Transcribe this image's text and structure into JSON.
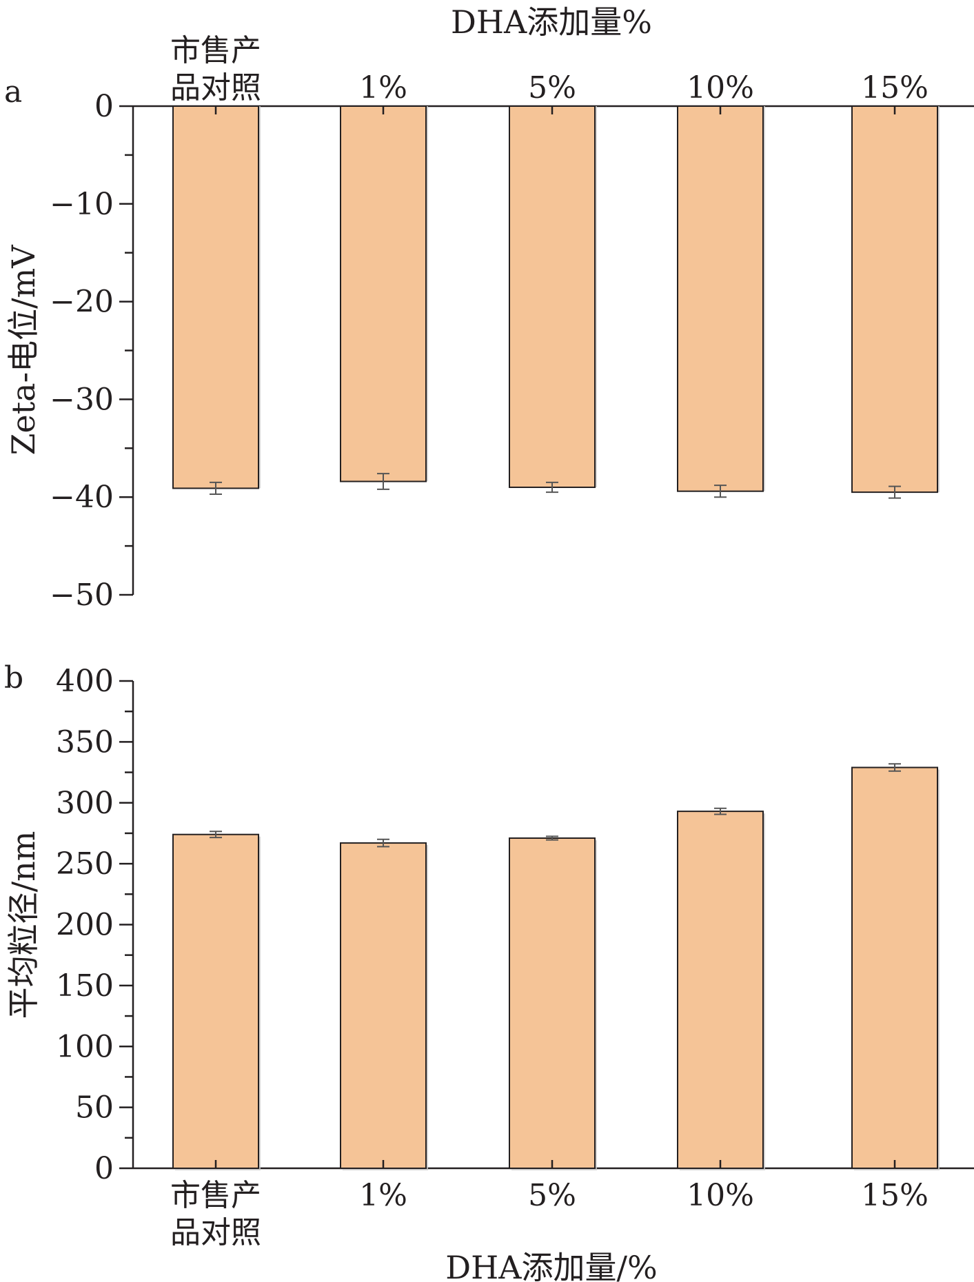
{
  "chart_data": [
    {
      "type": "bar",
      "panel_label": "a",
      "title": "",
      "xlabel": "DHA添加量%",
      "ylabel": "Zeta-电位/mV",
      "x_axis_position": "top",
      "categories": [
        [
          "市售产",
          "品对照"
        ],
        [
          "1%"
        ],
        [
          "5%"
        ],
        [
          "10%"
        ],
        [
          "15%"
        ]
      ],
      "values": [
        -39.1,
        -38.4,
        -39.0,
        -39.4,
        -39.5
      ],
      "errors": [
        0.6,
        0.8,
        0.5,
        0.6,
        0.6
      ],
      "ylim": [
        -50,
        0
      ],
      "yticks": [
        0,
        -10,
        -20,
        -30,
        -40,
        -50
      ],
      "ytick_labels": [
        "0",
        "−10",
        "−20",
        "−30",
        "−40",
        "−50"
      ],
      "grid": false,
      "bar_color": "#f5c497",
      "edge_color": "#231f20"
    },
    {
      "type": "bar",
      "panel_label": "b",
      "title": "",
      "xlabel": "DHA添加量/%",
      "ylabel": "平均粒径/nm",
      "x_axis_position": "bottom",
      "categories": [
        [
          "市售产",
          "品对照"
        ],
        [
          "1%"
        ],
        [
          "5%"
        ],
        [
          "10%"
        ],
        [
          "15%"
        ]
      ],
      "values": [
        274,
        267,
        271,
        293,
        329
      ],
      "errors": [
        2.5,
        3,
        1.5,
        2.5,
        3
      ],
      "ylim": [
        0,
        400
      ],
      "yticks": [
        0,
        50,
        100,
        150,
        200,
        250,
        300,
        350,
        400
      ],
      "ytick_labels": [
        "0",
        "50",
        "100",
        "150",
        "200",
        "250",
        "300",
        "350",
        "400"
      ],
      "grid": false,
      "bar_color": "#f5c497",
      "edge_color": "#231f20"
    }
  ]
}
